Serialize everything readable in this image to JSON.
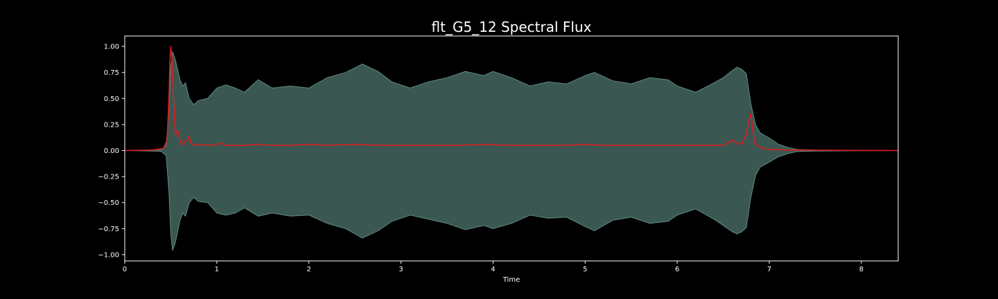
{
  "chart_data": {
    "type": "area",
    "title": "flt_G5_12 Spectral Flux",
    "xlabel": "Time",
    "ylabel": "",
    "xlim": [
      0,
      8.4
    ],
    "ylim": [
      -1.06,
      1.1
    ],
    "x_ticks": [
      "0",
      "1",
      "2",
      "3",
      "4",
      "5",
      "6",
      "7",
      "8"
    ],
    "x_tick_values": [
      0,
      1,
      2,
      3,
      4,
      5,
      6,
      7,
      8
    ],
    "y_ticks": [
      "1.00",
      "0.75",
      "0.50",
      "0.25",
      "0.00",
      "−0.25",
      "−0.50",
      "−0.75",
      "−1.00"
    ],
    "y_tick_values": [
      1.0,
      0.75,
      0.5,
      0.25,
      0.0,
      -0.25,
      -0.5,
      -0.75,
      -1.0
    ],
    "grid": false,
    "colors": {
      "background": "#000000",
      "waveform_fill": "#3a5752",
      "waveform_edge": "#5f8c84",
      "flux_line": "#e31a1c"
    },
    "series": [
      {
        "kind": "waveform_envelope",
        "x": [
          0,
          0.3,
          0.4,
          0.45,
          0.48,
          0.5,
          0.52,
          0.55,
          0.6,
          0.63,
          0.66,
          0.7,
          0.75,
          0.8,
          0.9,
          1.0,
          1.1,
          1.2,
          1.3,
          1.45,
          1.6,
          1.8,
          2.0,
          2.2,
          2.4,
          2.58,
          2.75,
          2.9,
          3.1,
          3.3,
          3.5,
          3.7,
          3.9,
          4.0,
          4.2,
          4.4,
          4.6,
          4.8,
          5.0,
          5.1,
          5.3,
          5.5,
          5.7,
          5.9,
          6.0,
          6.2,
          6.4,
          6.5,
          6.6,
          6.65,
          6.7,
          6.75,
          6.8,
          6.85,
          6.9,
          7.0,
          7.1,
          7.2,
          7.3,
          7.5,
          8.0,
          8.4
        ],
        "upper": [
          0.0,
          0.005,
          0.01,
          0.05,
          0.4,
          0.8,
          0.95,
          0.87,
          0.68,
          0.62,
          0.65,
          0.5,
          0.44,
          0.48,
          0.5,
          0.6,
          0.63,
          0.6,
          0.56,
          0.68,
          0.6,
          0.62,
          0.6,
          0.7,
          0.75,
          0.83,
          0.76,
          0.66,
          0.6,
          0.66,
          0.7,
          0.76,
          0.72,
          0.76,
          0.7,
          0.62,
          0.66,
          0.64,
          0.72,
          0.75,
          0.67,
          0.64,
          0.7,
          0.68,
          0.62,
          0.56,
          0.65,
          0.7,
          0.77,
          0.8,
          0.78,
          0.74,
          0.45,
          0.25,
          0.17,
          0.12,
          0.06,
          0.03,
          0.01,
          0.005,
          0.002,
          0.0
        ],
        "lower": [
          0.0,
          -0.005,
          -0.01,
          -0.05,
          -0.4,
          -0.8,
          -0.96,
          -0.88,
          -0.67,
          -0.6,
          -0.63,
          -0.5,
          -0.45,
          -0.49,
          -0.5,
          -0.6,
          -0.62,
          -0.6,
          -0.55,
          -0.63,
          -0.6,
          -0.63,
          -0.62,
          -0.7,
          -0.75,
          -0.84,
          -0.77,
          -0.68,
          -0.62,
          -0.66,
          -0.7,
          -0.76,
          -0.72,
          -0.75,
          -0.7,
          -0.62,
          -0.65,
          -0.64,
          -0.73,
          -0.77,
          -0.67,
          -0.64,
          -0.7,
          -0.68,
          -0.62,
          -0.56,
          -0.66,
          -0.72,
          -0.78,
          -0.8,
          -0.78,
          -0.74,
          -0.45,
          -0.24,
          -0.16,
          -0.11,
          -0.06,
          -0.03,
          -0.01,
          -0.005,
          -0.002,
          0.0
        ]
      },
      {
        "kind": "line",
        "x": [
          0,
          0.3,
          0.42,
          0.46,
          0.48,
          0.49,
          0.5,
          0.51,
          0.53,
          0.55,
          0.57,
          0.6,
          0.62,
          0.65,
          0.68,
          0.7,
          0.72,
          0.75,
          0.8,
          0.9,
          1.0,
          1.05,
          1.1,
          1.3,
          1.45,
          1.6,
          1.8,
          2.0,
          2.2,
          2.5,
          2.8,
          3.0,
          3.3,
          3.6,
          3.9,
          4.2,
          4.5,
          4.8,
          5.0,
          5.2,
          5.5,
          5.8,
          6.1,
          6.3,
          6.5,
          6.6,
          6.65,
          6.7,
          6.75,
          6.78,
          6.8,
          6.82,
          6.84,
          6.87,
          6.9,
          7.0,
          7.2,
          7.5,
          8.4
        ],
        "values": [
          0.0,
          0.005,
          0.02,
          0.1,
          0.5,
          0.85,
          1.0,
          0.9,
          0.5,
          0.15,
          0.2,
          0.1,
          0.05,
          0.08,
          0.1,
          0.14,
          0.07,
          0.05,
          0.06,
          0.05,
          0.06,
          0.07,
          0.05,
          0.05,
          0.06,
          0.05,
          0.05,
          0.06,
          0.05,
          0.06,
          0.05,
          0.05,
          0.05,
          0.05,
          0.06,
          0.05,
          0.05,
          0.05,
          0.06,
          0.05,
          0.05,
          0.05,
          0.05,
          0.05,
          0.05,
          0.1,
          0.07,
          0.06,
          0.15,
          0.3,
          0.35,
          0.2,
          0.08,
          0.05,
          0.03,
          0.01,
          0.005,
          0.003,
          0.0
        ]
      }
    ]
  }
}
